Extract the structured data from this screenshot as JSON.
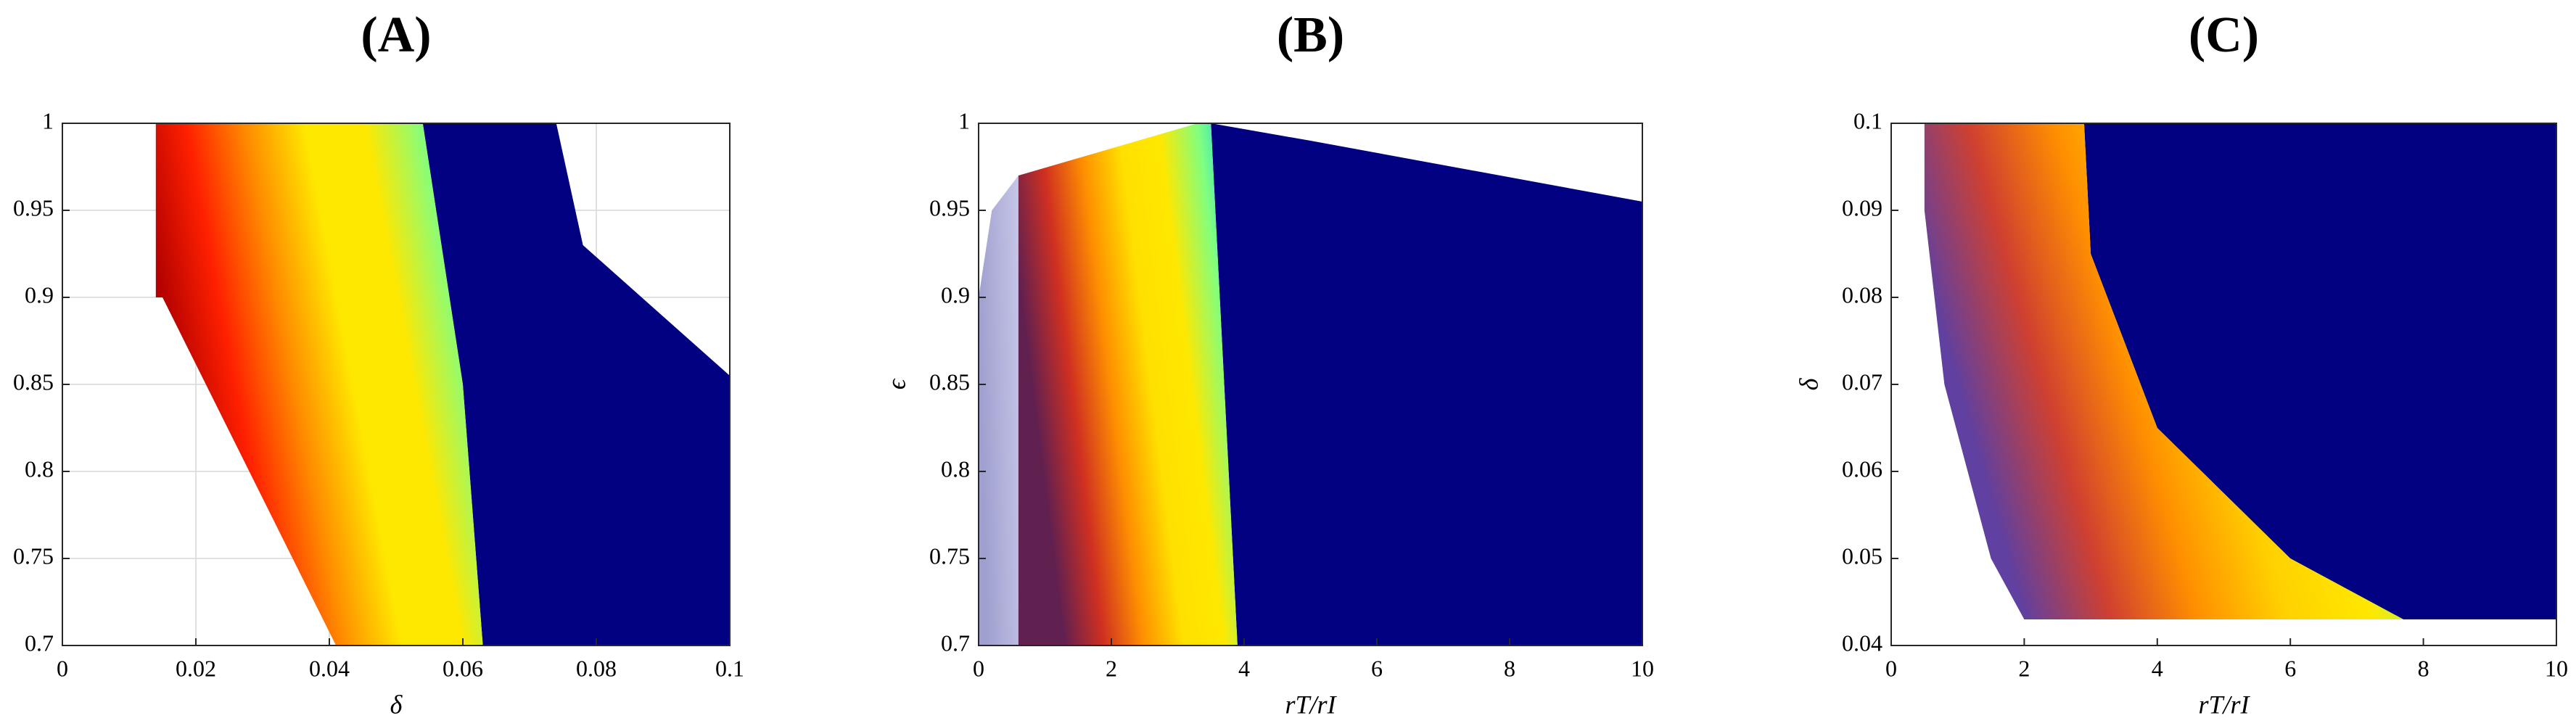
{
  "chart_data": [
    {
      "type": "scatter",
      "title": "(A)",
      "xlabel": "δ",
      "xlim": [
        0,
        0.1
      ],
      "ylim": [
        0.7,
        1
      ],
      "xticks": [
        0,
        0.02,
        0.04,
        0.06,
        0.08,
        0.1
      ],
      "yticks": [
        0.7,
        0.75,
        0.8,
        0.85,
        0.9,
        0.95,
        1
      ],
      "grid": true,
      "series": [
        {
          "color": "#000080",
          "x": [
            0.054,
            0.074,
            0.078,
            0.1,
            0.1,
            0.063,
            0.06
          ],
          "y": [
            1,
            1,
            0.93,
            0.855,
            0.7,
            0.7,
            0.85
          ]
        },
        {
          "color": [
            "#b00000",
            "#ff2000",
            "#ff8c00",
            "#ffe800",
            "#ffe800",
            "#80ff80",
            "#00c8ff"
          ],
          "x": [
            0.014,
            0.054,
            0.06,
            0.063,
            0.041,
            0.015,
            0.014
          ],
          "y": [
            1,
            1,
            0.85,
            0.7,
            0.7,
            0.9,
            0.9
          ]
        }
      ]
    },
    {
      "type": "scatter",
      "title": "(B)",
      "xlabel": "rT/rI",
      "ylabel": "ϵ",
      "xlim": [
        0,
        10
      ],
      "ylim": [
        0.7,
        1
      ],
      "xticks": [
        0,
        2,
        4,
        6,
        8,
        10
      ],
      "yticks": [
        0.7,
        0.75,
        0.8,
        0.85,
        0.9,
        0.95,
        1
      ],
      "grid": false,
      "series": [
        {
          "color": "#000080",
          "x": [
            3.5,
            5,
            10,
            10,
            3.9,
            3.7
          ],
          "y": [
            1,
            0.99,
            0.955,
            0.7,
            0.7,
            0.85
          ]
        },
        {
          "color": [
            "#6060b0",
            "#a0a0d8"
          ],
          "x": [
            0,
            0.6,
            0.6,
            0.2,
            0
          ],
          "y": [
            0.7,
            0.7,
            0.97,
            0.95,
            0.9
          ]
        },
        {
          "color": [
            "#602050",
            "#d03020",
            "#ff9000",
            "#ffe000",
            "#ffe800",
            "#80ff80",
            "#00c8ff"
          ],
          "x": [
            0.6,
            3.3,
            3.5,
            3.7,
            3.9,
            0.6
          ],
          "y": [
            0.97,
            1,
            1,
            0.85,
            0.7,
            0.7
          ]
        }
      ]
    },
    {
      "type": "scatter",
      "title": "(C)",
      "xlabel": "rT/rI",
      "ylabel": "δ",
      "xlim": [
        0,
        10
      ],
      "ylim": [
        0.04,
        0.1
      ],
      "xticks": [
        0,
        2,
        4,
        6,
        8,
        10
      ],
      "yticks": [
        0.04,
        0.05,
        0.06,
        0.07,
        0.08,
        0.09,
        0.1
      ],
      "grid": false,
      "series": [
        {
          "color": "#000080",
          "x": [
            2.9,
            10,
            10,
            7.7,
            6,
            4,
            3
          ],
          "y": [
            0.1,
            0.1,
            0.043,
            0.043,
            0.05,
            0.065,
            0.085
          ]
        },
        {
          "color": [
            "#6040a0",
            "#d04030",
            "#ff9000",
            "#ffd000",
            "#ffe800",
            "#80ff80",
            "#00c8ff"
          ],
          "x": [
            0.5,
            2.9,
            3,
            4,
            6,
            7.7,
            2,
            1.5,
            0.8,
            0.5
          ],
          "y": [
            0.1,
            0.1,
            0.085,
            0.065,
            0.05,
            0.043,
            0.043,
            0.05,
            0.07,
            0.09
          ]
        }
      ]
    }
  ]
}
